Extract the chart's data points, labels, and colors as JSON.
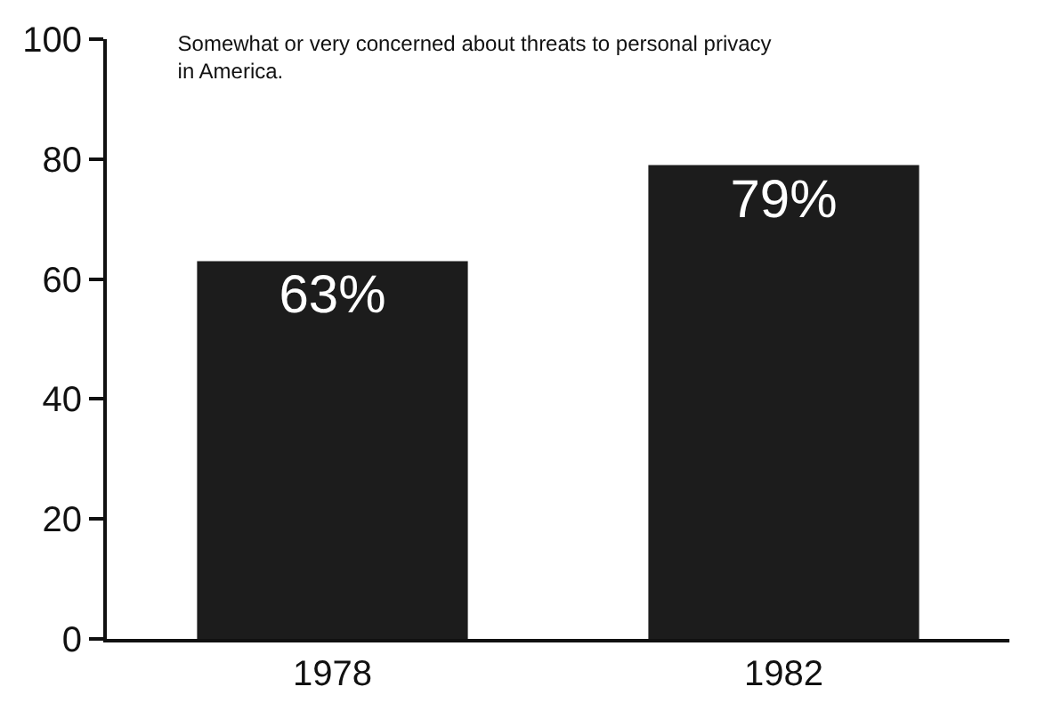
{
  "chart_data": {
    "type": "bar",
    "title": "Somewhat or very concerned about threats to personal privacy in America.",
    "categories": [
      "1978",
      "1982"
    ],
    "values": [
      63,
      79
    ],
    "value_labels": [
      "63%",
      "79%"
    ],
    "color": "#1c1c1c",
    "ylim": [
      0,
      100
    ],
    "yticks": [
      0,
      20,
      40,
      60,
      80,
      100
    ],
    "grid": false
  }
}
